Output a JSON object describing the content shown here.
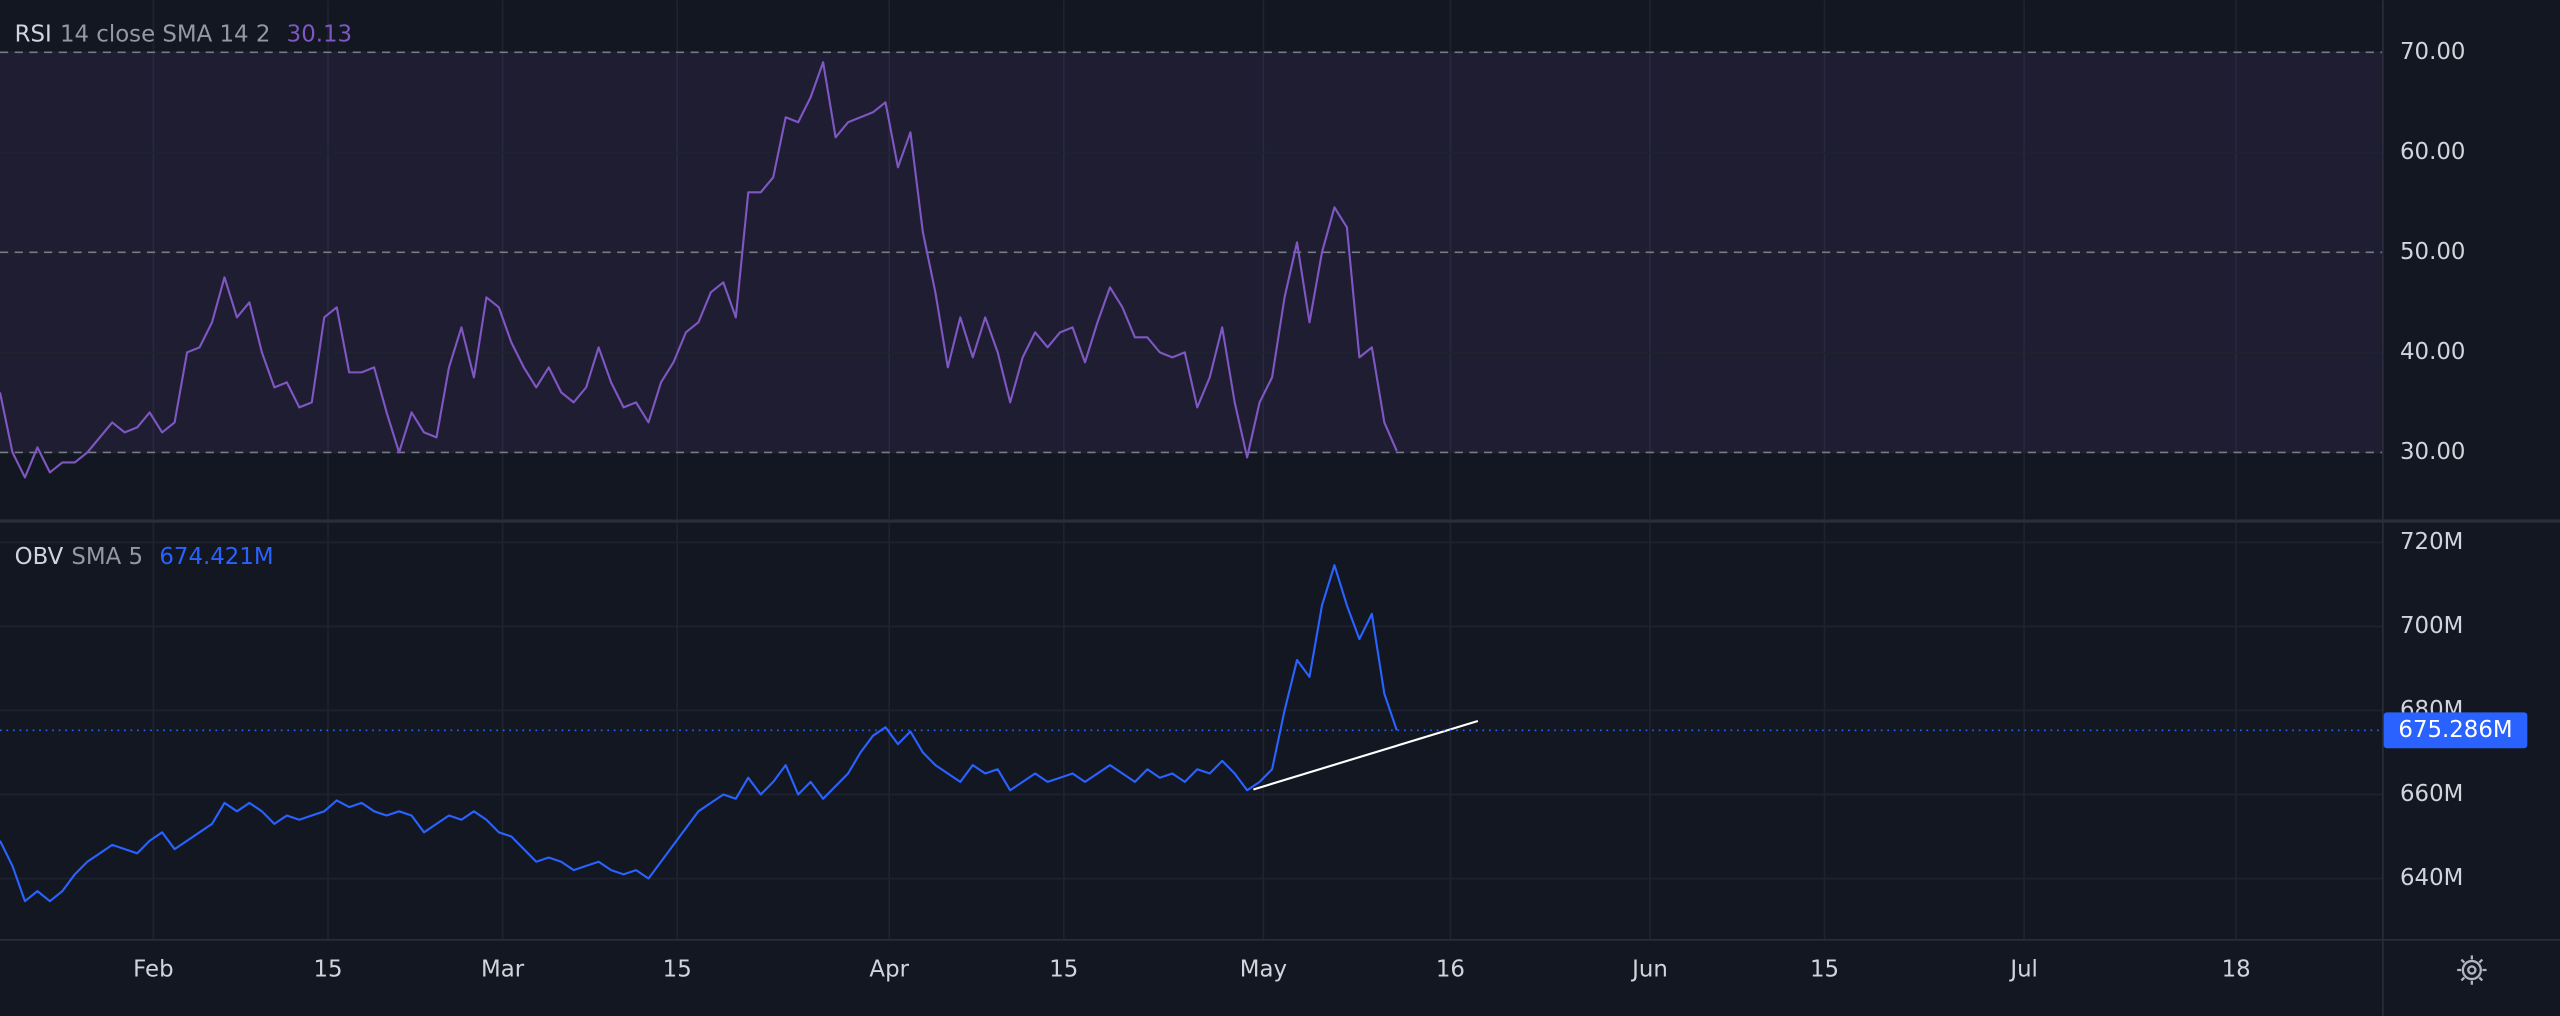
{
  "x_axis": {
    "xlim": [
      0,
      191
    ],
    "xticks": [
      {
        "value": 12.3,
        "label": "Feb"
      },
      {
        "value": 26.3,
        "label": "15"
      },
      {
        "value": 40.3,
        "label": "Mar"
      },
      {
        "value": 54.3,
        "label": "15"
      },
      {
        "value": 71.3,
        "label": "Apr"
      },
      {
        "value": 85.3,
        "label": "15"
      },
      {
        "value": 101.3,
        "label": "May"
      },
      {
        "value": 116.3,
        "label": "16"
      },
      {
        "value": 132.3,
        "label": "Jun"
      },
      {
        "value": 146.3,
        "label": "15"
      },
      {
        "value": 162.3,
        "label": "Jul"
      },
      {
        "value": 179.3,
        "label": "18"
      }
    ]
  },
  "chart_data": [
    {
      "type": "line",
      "params": "14 close SMA 14 2",
      "legend_value": 30.13,
      "series": [
        {
          "name": "RSI",
          "color": "#7e57c2",
          "values": [
            36,
            30,
            27.5,
            30.5,
            28,
            29,
            29,
            30,
            31.5,
            33,
            32,
            32.5,
            34,
            32,
            33,
            40,
            40.5,
            43,
            47.5,
            43.5,
            45,
            40,
            36.5,
            37,
            34.5,
            35,
            43.5,
            44.5,
            38,
            38,
            38.5,
            34,
            30,
            34,
            32,
            31.5,
            38.5,
            42.5,
            37.5,
            45.5,
            44.5,
            41,
            38.5,
            36.5,
            38.5,
            36,
            35,
            36.5,
            40.5,
            37,
            34.5,
            35,
            33,
            37,
            39,
            42,
            43,
            46,
            47,
            43.5,
            56,
            56,
            57.5,
            63.5,
            63,
            65.5,
            69,
            61.5,
            63,
            63.5,
            64,
            65,
            58.5,
            62,
            52,
            46,
            38.5,
            43.5,
            39.5,
            43.5,
            40,
            35,
            39.5,
            42,
            40.5,
            42,
            42.5,
            39,
            43,
            46.5,
            44.5,
            41.5,
            41.5,
            40,
            39.5,
            40,
            34.5,
            37.5,
            42.5,
            35,
            29.5,
            35,
            37.5,
            45.5,
            51,
            43,
            50,
            54.5,
            52.5,
            39.5,
            40.5,
            33,
            30.13
          ]
        }
      ],
      "ylim": [
        23.3,
        75.2
      ],
      "yticks": [
        {
          "value": 30,
          "label": "30.00"
        },
        {
          "value": 40,
          "label": "40.00"
        },
        {
          "value": 50,
          "label": "50.00"
        },
        {
          "value": 60,
          "label": "60.00"
        },
        {
          "value": 70,
          "label": "70.00"
        }
      ],
      "levels": [
        70,
        50,
        30
      ],
      "grid": true
    },
    {
      "type": "line",
      "params": "SMA 5",
      "legend_value": "674.421M",
      "series": [
        {
          "name": "OBV",
          "color": "#2962ff",
          "values": [
            649,
            643,
            634.6,
            637,
            634.6,
            637,
            641,
            644,
            646,
            648,
            647,
            646,
            649,
            651,
            647,
            649,
            651,
            653,
            658,
            656,
            658,
            656,
            653,
            655,
            654,
            655,
            656,
            658.6,
            657,
            658,
            656,
            655,
            656,
            655,
            651,
            653,
            655,
            654,
            656,
            654,
            651,
            650,
            647,
            644,
            645,
            644,
            642,
            643,
            644,
            642,
            641,
            642,
            640,
            644,
            648,
            652,
            656,
            658,
            660,
            659,
            664,
            660,
            663,
            667,
            660,
            663,
            659,
            662,
            665,
            670,
            674,
            676,
            672,
            675,
            670,
            667,
            665,
            663,
            667,
            665,
            666,
            661,
            663,
            665,
            663,
            664,
            665,
            663,
            665,
            667,
            665,
            663,
            666,
            664,
            665,
            663,
            666,
            665,
            668,
            665,
            661,
            663,
            666,
            680,
            692,
            688,
            705,
            714.6,
            705,
            697,
            703,
            684,
            675.286
          ]
        }
      ],
      "ylim": [
        625.6,
        724.7
      ],
      "yticks": [
        {
          "value": 640,
          "label": "640M"
        },
        {
          "value": 660,
          "label": "660M"
        },
        {
          "value": 680,
          "label": "680M"
        },
        {
          "value": 700,
          "label": "700M"
        },
        {
          "value": 720,
          "label": "720M"
        }
      ],
      "current": {
        "value": 675.286,
        "label": "675.286M"
      },
      "trendline": {
        "x": [
          100.5,
          118.5
        ],
        "values": [
          661.2,
          677.5
        ]
      },
      "grid": true
    }
  ]
}
